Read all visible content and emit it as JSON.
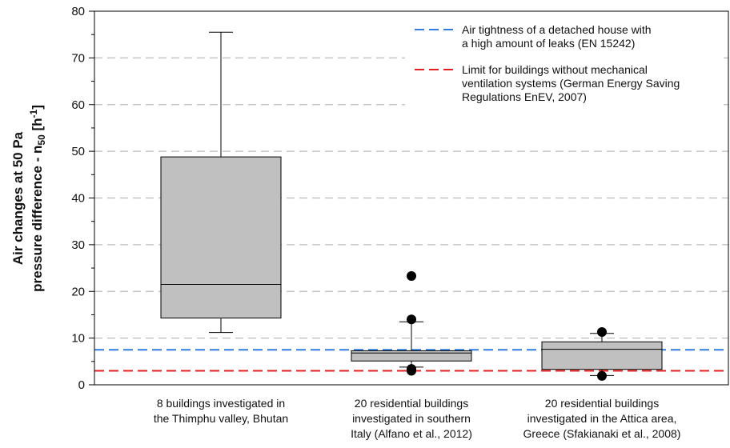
{
  "chart_data": {
    "type": "box",
    "ylabel": {
      "line1": "Air changes at 50 Pa",
      "line2": "pressure difference - n",
      "sub": "50",
      "unit_open": " [h",
      "sup": "-1",
      "unit_close": "]"
    },
    "categories": [
      [
        "8 buildings investigated in",
        "the Thimphu valley, Bhutan"
      ],
      [
        "20 residential buildings",
        "investigated in southern",
        "Italy (Alfano et al., 2012)"
      ],
      [
        "20 residential buildings",
        "investigated in the Attica area,",
        "Greece (Sfakianaki et al., 2008)"
      ]
    ],
    "boxes": [
      {
        "whislo": 11.2,
        "q1": 14.3,
        "med": 21.5,
        "q3": 48.8,
        "whishi": 75.5,
        "fliers": []
      },
      {
        "whislo": 3.8,
        "q1": 5.1,
        "med": 6.8,
        "q3": 7.3,
        "whishi": 13.5,
        "fliers": [
          23.3,
          14.0,
          3.4,
          3.0
        ]
      },
      {
        "whislo": 2.0,
        "q1": 3.3,
        "med": 7.6,
        "q3": 9.2,
        "whishi": 11.0,
        "fliers": [
          11.3,
          1.9
        ]
      }
    ],
    "box_color": "#c0c0c0",
    "reference_lines": [
      {
        "value": 7.5,
        "color": "#2f7de1",
        "label": [
          "Air tightness of a detached house with",
          "a high amount of leaks (EN 15242)"
        ]
      },
      {
        "value": 3.0,
        "color": "#e02020",
        "label": [
          "Limit for buildings without mechanical",
          "ventilation systems (German Energy Saving",
          "Regulations EnEV, 2007)"
        ]
      }
    ],
    "ylim": [
      0,
      80
    ],
    "yticks": [
      0,
      10,
      20,
      30,
      40,
      50,
      60,
      70,
      80
    ],
    "yminorticks": [
      5,
      15,
      25,
      35,
      45,
      55,
      65,
      75
    ],
    "grid": true,
    "legend": "upper right"
  }
}
